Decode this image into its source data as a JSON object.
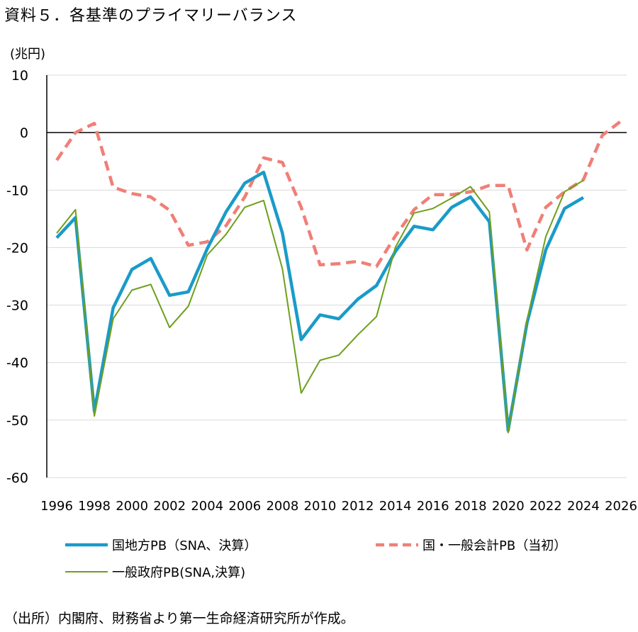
{
  "title": "資料５．各基準のプライマリーバランス",
  "source": "（出所）内閣府、財務省より第一生命経済研究所が作成。",
  "chart_data": {
    "type": "line",
    "unit_label": "(兆円)",
    "ylim": [
      -60,
      10
    ],
    "yticks": [
      10,
      0,
      -10,
      -20,
      -30,
      -40,
      -50,
      -60
    ],
    "xlim": [
      1996,
      2026
    ],
    "xticks": [
      1996,
      1998,
      2000,
      2002,
      2004,
      2006,
      2008,
      2010,
      2012,
      2014,
      2016,
      2018,
      2020,
      2022,
      2024,
      2026
    ],
    "grid": true,
    "series": [
      {
        "name": "国地方PB（SNA、決算）",
        "color": "#1a9bc9",
        "style": "solid",
        "width": 4.5,
        "x": [
          1996,
          1997,
          1998,
          1999,
          2000,
          2001,
          2002,
          2003,
          2004,
          2005,
          2006,
          2007,
          2008,
          2009,
          2010,
          2011,
          2012,
          2013,
          2014,
          2015,
          2016,
          2017,
          2018,
          2019,
          2020,
          2021,
          2022,
          2023,
          2024
        ],
        "values": [
          -18.3,
          -14.8,
          -48.5,
          -30.5,
          -23.8,
          -21.9,
          -28.3,
          -27.7,
          -20.2,
          -13.8,
          -8.8,
          -6.9,
          -17.5,
          -36.0,
          -31.7,
          -32.4,
          -29.0,
          -26.6,
          -20.7,
          -16.3,
          -16.9,
          -13.0,
          -11.2,
          -15.5,
          -51.8,
          -33.2,
          -20.4,
          -13.2,
          -11.3
        ]
      },
      {
        "name": "国・一般会計PB（当初）",
        "color": "#f07f77",
        "style": "dashed",
        "width": 4.5,
        "x": [
          1996,
          1997,
          1998,
          1999,
          2000,
          2001,
          2002,
          2003,
          2004,
          2005,
          2006,
          2007,
          2008,
          2009,
          2010,
          2011,
          2012,
          2013,
          2014,
          2015,
          2016,
          2017,
          2018,
          2019,
          2020,
          2021,
          2022,
          2023,
          2024,
          2025,
          2026
        ],
        "values": [
          -4.8,
          0.0,
          1.6,
          -9.5,
          -10.6,
          -11.2,
          -13.5,
          -19.6,
          -19.0,
          -16.2,
          -11.2,
          -4.4,
          -5.2,
          -13.0,
          -23.0,
          -22.8,
          -22.4,
          -23.3,
          -18.0,
          -13.4,
          -10.8,
          -10.8,
          -10.3,
          -9.2,
          -9.2,
          -20.4,
          -13.0,
          -10.3,
          -8.2,
          -0.5,
          2.0
        ]
      },
      {
        "name": "一般政府PB(SNA,決算)",
        "color": "#6e9f1b",
        "style": "solid",
        "width": 2,
        "x": [
          1996,
          1997,
          1998,
          1999,
          2000,
          2001,
          2002,
          2003,
          2004,
          2005,
          2006,
          2007,
          2008,
          2009,
          2010,
          2011,
          2012,
          2013,
          2014,
          2015,
          2016,
          2017,
          2018,
          2019,
          2020,
          2021,
          2022,
          2023,
          2024
        ],
        "values": [
          -17.5,
          -13.4,
          -49.3,
          -32.4,
          -27.4,
          -26.4,
          -33.9,
          -30.2,
          -21.3,
          -17.7,
          -13.0,
          -11.8,
          -23.7,
          -45.3,
          -39.6,
          -38.7,
          -35.2,
          -32.0,
          -20.0,
          -14.0,
          -13.2,
          -11.4,
          -9.4,
          -13.8,
          -52.2,
          -32.7,
          -18.1,
          -10.3,
          -8.3
        ]
      }
    ]
  }
}
